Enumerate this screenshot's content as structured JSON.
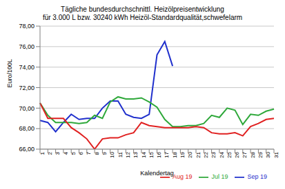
{
  "chart_data": {
    "type": "line",
    "title": "Tägliche bundesdurchschnittl. Heizölpreisentwicklung",
    "subtitle": "für 3.000 L bzw. 30240 kWh Heizöl-Standardqualität,schwefelarm",
    "x_label": "Kalendertag",
    "y_label": "Euro/100L",
    "categories": [
      "1",
      "2",
      "3",
      "4",
      "5",
      "6",
      "7",
      "8",
      "9",
      "10",
      "11",
      "12",
      "13",
      "14",
      "15",
      "16",
      "17",
      "18",
      "19",
      "20",
      "21",
      "22",
      "23",
      "24",
      "25",
      "26",
      "27",
      "28",
      "29",
      "30",
      "31"
    ],
    "series": [
      {
        "name": "Sep 19",
        "color": "#1f2fcc",
        "values": [
          68.8,
          68.6,
          67.7,
          68.6,
          69.4,
          68.9,
          69.0,
          69.0,
          70.0,
          70.7,
          70.7,
          69.4,
          69.1,
          69.0,
          69.4,
          75.2,
          76.5,
          74.1,
          null,
          null,
          null,
          null,
          null,
          null,
          null,
          null,
          null,
          null,
          null,
          null,
          null
        ]
      },
      {
        "name": "Jul 19",
        "color": "#2ea83a",
        "values": [
          70.5,
          69.3,
          68.6,
          68.6,
          68.6,
          68.5,
          68.6,
          69.3,
          69.0,
          70.6,
          71.1,
          70.9,
          70.9,
          71.0,
          70.6,
          70.1,
          68.9,
          68.2,
          68.2,
          68.3,
          68.3,
          68.5,
          69.3,
          69.1,
          70.0,
          69.8,
          68.4,
          69.4,
          69.3,
          69.7,
          69.9
        ]
      },
      {
        "name": "Aug 19",
        "color": "#e02020",
        "values": [
          70.5,
          69.0,
          69.0,
          69.0,
          68.1,
          67.6,
          67.0,
          66.0,
          67.0,
          67.1,
          67.1,
          67.4,
          67.6,
          68.6,
          68.3,
          68.2,
          68.1,
          68.1,
          68.1,
          68.1,
          68.2,
          68.1,
          67.6,
          67.5,
          67.5,
          67.6,
          67.3,
          68.2,
          68.5,
          68.9,
          69.0
        ]
      }
    ],
    "ylim": [
      66,
      78
    ],
    "yticks": [
      {
        "value": 66,
        "label": "66,00"
      },
      {
        "value": 68,
        "label": "68,00"
      },
      {
        "value": 70,
        "label": "70,00"
      },
      {
        "value": 72,
        "label": "72,00"
      },
      {
        "value": 74,
        "label": "74,00"
      },
      {
        "value": 76,
        "label": "76,00"
      },
      {
        "value": 78,
        "label": "78,00"
      }
    ],
    "grid": true,
    "legend": "bottom"
  }
}
